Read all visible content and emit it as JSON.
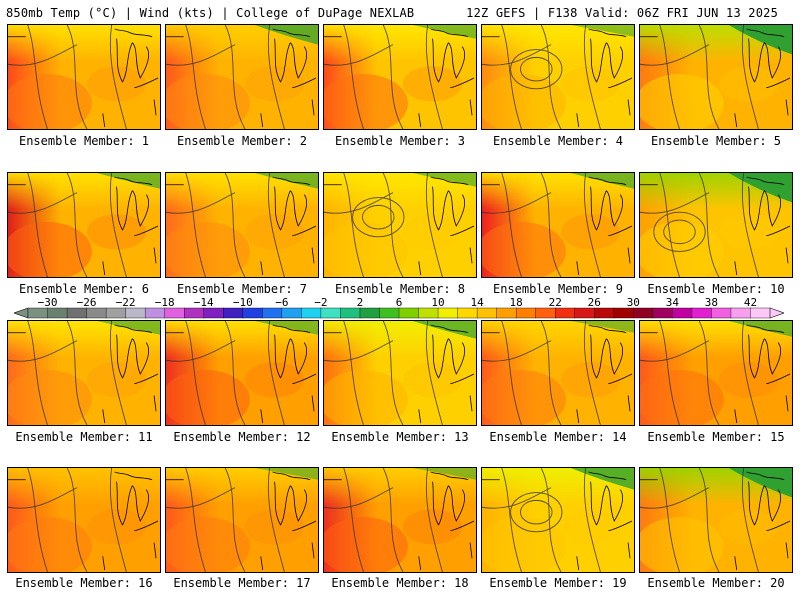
{
  "header": {
    "left": "850mb Temp (°C) | Wind (kts) | College of DuPage NEXLAB",
    "right": "12Z GEFS | F138 Valid: 06Z FRI JUN 13 2025"
  },
  "panels": [
    {
      "label": "Ensemble Member: 1",
      "base": "#ffb300",
      "west": "#ff4a1a",
      "north": "#ffe300",
      "green": 0.0,
      "blob": "#ff7a10"
    },
    {
      "label": "Ensemble Member: 2",
      "base": "#ffb300",
      "west": "#ff5a1a",
      "north": "#ffd000",
      "green": 0.5,
      "blob": "#ff8a10"
    },
    {
      "label": "Ensemble Member: 3",
      "base": "#ffc400",
      "west": "#ff4a1a",
      "north": "#ffe800",
      "green": 0.2,
      "blob": "#ff7010"
    },
    {
      "label": "Ensemble Member: 4",
      "base": "#ffd000",
      "west": "#ff8a10",
      "north": "#ffe800",
      "green": 0.1,
      "blob": "#ffb300"
    },
    {
      "label": "Ensemble Member: 5",
      "base": "#ffb300",
      "west": "#ff7a10",
      "north": "#b8e000",
      "green": 1.0,
      "blob": "#ffd000"
    },
    {
      "label": "Ensemble Member: 6",
      "base": "#ffb300",
      "west": "#e0201a",
      "north": "#ffe300",
      "green": 0.3,
      "blob": "#ff6010"
    },
    {
      "label": "Ensemble Member: 7",
      "base": "#ffb300",
      "west": "#ff6a1a",
      "north": "#ffe300",
      "green": 0.3,
      "blob": "#ff8a10"
    },
    {
      "label": "Ensemble Member: 8",
      "base": "#ffd000",
      "west": "#ffb300",
      "north": "#ffe800",
      "green": 0.2,
      "blob": "#ffc400"
    },
    {
      "label": "Ensemble Member: 9",
      "base": "#ffb300",
      "west": "#ee2020",
      "north": "#ffe300",
      "green": 0.3,
      "blob": "#ff7010"
    },
    {
      "label": "Ensemble Member: 10",
      "base": "#ffc400",
      "west": "#ffa000",
      "north": "#9ad400",
      "green": 1.0,
      "blob": "#ffd000"
    },
    {
      "label": "Ensemble Member: 11",
      "base": "#ffb300",
      "west": "#ff6a1a",
      "north": "#ffe800",
      "green": 0.2,
      "blob": "#ff8a10"
    },
    {
      "label": "Ensemble Member: 12",
      "base": "#ffa000",
      "west": "#ee3020",
      "north": "#ffe300",
      "green": 0.2,
      "blob": "#ff6010"
    },
    {
      "label": "Ensemble Member: 13",
      "base": "#ffd000",
      "west": "#ff7010",
      "north": "#f0f000",
      "green": 0.4,
      "blob": "#ffb300"
    },
    {
      "label": "Ensemble Member: 14",
      "base": "#ffb300",
      "west": "#ff5a1a",
      "north": "#ffd800",
      "green": 0.1,
      "blob": "#ff7a10"
    },
    {
      "label": "Ensemble Member: 15",
      "base": "#ffa000",
      "west": "#ff5a1a",
      "north": "#ffe300",
      "green": 0.3,
      "blob": "#ff7010"
    },
    {
      "label": "Ensemble Member: 16",
      "base": "#ffa000",
      "west": "#ff5a1a",
      "north": "#ffc400",
      "green": 0.0,
      "blob": "#ff7a10"
    },
    {
      "label": "Ensemble Member: 17",
      "base": "#ffa000",
      "west": "#ff5a1a",
      "north": "#ffd000",
      "green": 0.1,
      "blob": "#ff7a10"
    },
    {
      "label": "Ensemble Member: 18",
      "base": "#ffa000",
      "west": "#ee3020",
      "north": "#ffd000",
      "green": 0.1,
      "blob": "#ff6010"
    },
    {
      "label": "Ensemble Member: 19",
      "base": "#ffd000",
      "west": "#ffb300",
      "north": "#eef000",
      "green": 0.6,
      "blob": "#ffc400"
    },
    {
      "label": "Ensemble Member: 20",
      "base": "#ffb300",
      "west": "#ff7a10",
      "north": "#9ad400",
      "green": 1.0,
      "blob": "#ffc400"
    }
  ],
  "colorbar": {
    "ticks": [
      "-30",
      "-26",
      "-22",
      "-18",
      "-14",
      "-10",
      "-6",
      "-2",
      "2",
      "6",
      "10",
      "14",
      "18",
      "22",
      "26",
      "30",
      "34",
      "38",
      "42"
    ],
    "colors": [
      "#7a9080",
      "#6a8070",
      "#707070",
      "#8a8a8a",
      "#a0a0a0",
      "#b8b8c8",
      "#c090e0",
      "#e060e0",
      "#b030c0",
      "#8020c0",
      "#4020c0",
      "#2040e0",
      "#2070f0",
      "#20a0f0",
      "#20d0f0",
      "#40e0c0",
      "#20c080",
      "#20a040",
      "#40c020",
      "#80d000",
      "#c0e000",
      "#f0f000",
      "#ffd800",
      "#ffc000",
      "#ffa000",
      "#ff8000",
      "#ff6010",
      "#f03010",
      "#d81818",
      "#b80808",
      "#a00000",
      "#900020",
      "#a00060",
      "#c000a0",
      "#e020d0",
      "#f060e0",
      "#f8a0f0",
      "#fcc8f8"
    ]
  }
}
